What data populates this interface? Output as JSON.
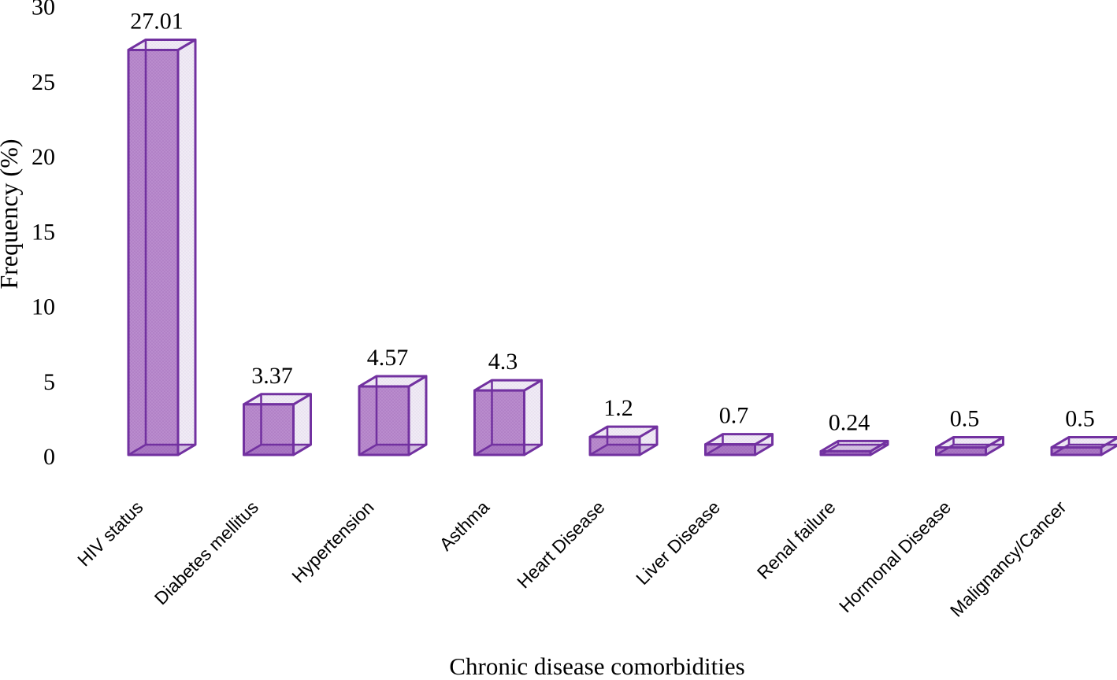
{
  "chart_data": {
    "type": "bar",
    "style": "3d-open-box-columns",
    "title": "",
    "xlabel": "Chronic disease comorbidities",
    "ylabel": "Frequency (%)",
    "categories": [
      "HIV status",
      "Diabetes mellitus",
      "Hypertension",
      "Asthma",
      "Heart Disease",
      "Liver Disease",
      "Renal failure",
      "Hormonal Disease",
      "Malignancy/Cancer"
    ],
    "values": [
      27.01,
      3.37,
      4.57,
      4.3,
      1.2,
      0.7,
      0.24,
      0.5,
      0.5
    ],
    "value_labels": [
      "27.01",
      "3.37",
      "4.57",
      "4.3",
      "1.2",
      "0.7",
      "0.24",
      "0.5",
      "0.5"
    ],
    "ylim": [
      0,
      30
    ],
    "yticks": [
      0,
      5,
      10,
      15,
      20,
      25,
      30
    ],
    "grid": false,
    "legend": false,
    "axis_lines": false,
    "category_label_rotation_deg": -45,
    "colors": {
      "bar_front": "#b98ccd",
      "bar_front_dot": "#a873bf",
      "bar_side_top": "#f0ebf5",
      "bar_side_top_dot": "#e1d7eb",
      "bar_stroke": "#7231a0",
      "text": "#000000",
      "background": "#ffffff"
    }
  }
}
